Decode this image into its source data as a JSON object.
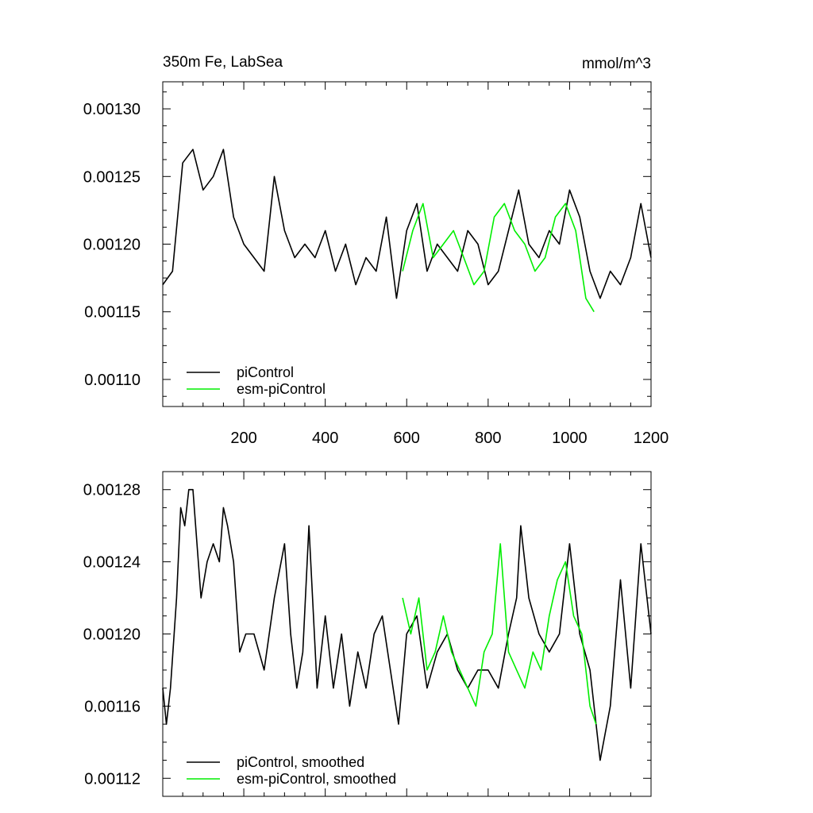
{
  "chart_data": [
    {
      "type": "line",
      "title_left": "350m Fe, LabSea",
      "title_right": "mmol/m^3",
      "xlabel": "",
      "ylabel": "",
      "xlim": [
        1,
        1200
      ],
      "ylim": [
        0.00108,
        0.00132
      ],
      "xticks": [
        200,
        400,
        600,
        800,
        1000,
        1200
      ],
      "xtick_labels": [
        "200",
        "400",
        "600",
        "800",
        "1000",
        "1200"
      ],
      "yticks": [
        0.0011,
        0.00115,
        0.0012,
        0.00125,
        0.0013
      ],
      "ytick_labels": [
        "0.00110",
        "0.00115",
        "0.00120",
        "0.00125",
        "0.00130"
      ],
      "legend_position": "bottom-left",
      "grid": false,
      "series": [
        {
          "name": "piControl",
          "color": "#000000",
          "x": [
            1,
            25,
            50,
            75,
            100,
            125,
            150,
            175,
            200,
            225,
            250,
            275,
            300,
            325,
            350,
            375,
            400,
            425,
            450,
            475,
            500,
            525,
            550,
            575,
            600,
            625,
            650,
            675,
            700,
            725,
            750,
            775,
            800,
            825,
            850,
            875,
            900,
            925,
            950,
            975,
            1000,
            1025,
            1050,
            1075,
            1100,
            1125,
            1150,
            1175,
            1200
          ],
          "values": [
            0.00117,
            0.00118,
            0.00126,
            0.00127,
            0.00124,
            0.00125,
            0.00127,
            0.00122,
            0.0012,
            0.00119,
            0.00118,
            0.00125,
            0.00121,
            0.00119,
            0.0012,
            0.00119,
            0.00121,
            0.00118,
            0.0012,
            0.00117,
            0.00119,
            0.00118,
            0.00122,
            0.00116,
            0.00121,
            0.00123,
            0.00118,
            0.0012,
            0.00119,
            0.00118,
            0.00121,
            0.0012,
            0.00117,
            0.00118,
            0.00121,
            0.00124,
            0.0012,
            0.00119,
            0.00121,
            0.0012,
            0.00124,
            0.00122,
            0.00118,
            0.00116,
            0.00118,
            0.00117,
            0.00119,
            0.00123,
            0.00119
          ]
        },
        {
          "name": "esm-piControl",
          "color": "#00ee00",
          "x": [
            590,
            615,
            640,
            665,
            690,
            715,
            740,
            765,
            790,
            815,
            840,
            865,
            890,
            915,
            940,
            965,
            990,
            1015,
            1040,
            1060
          ],
          "values": [
            0.00118,
            0.00121,
            0.00123,
            0.00119,
            0.0012,
            0.00121,
            0.00119,
            0.00117,
            0.00118,
            0.00122,
            0.00123,
            0.00121,
            0.0012,
            0.00118,
            0.00119,
            0.00122,
            0.00123,
            0.00121,
            0.00116,
            0.00115
          ]
        }
      ]
    },
    {
      "type": "line",
      "xlabel": "",
      "ylabel": "",
      "xlim": [
        1,
        1200
      ],
      "ylim": [
        0.00111,
        0.00129
      ],
      "xticks": [
        200,
        400,
        600,
        800,
        1000,
        1200
      ],
      "yticks": [
        0.00112,
        0.00116,
        0.0012,
        0.00124,
        0.00128
      ],
      "ytick_labels": [
        "0.00112",
        "0.00116",
        "0.00120",
        "0.00124",
        "0.00128"
      ],
      "legend_position": "bottom-left",
      "grid": false,
      "series": [
        {
          "name": "piControl, smoothed",
          "color": "#000000",
          "x": [
            1,
            10,
            20,
            35,
            45,
            55,
            65,
            75,
            85,
            95,
            110,
            125,
            140,
            150,
            160,
            175,
            190,
            205,
            225,
            250,
            275,
            300,
            315,
            330,
            345,
            360,
            380,
            400,
            420,
            440,
            460,
            480,
            500,
            520,
            540,
            560,
            580,
            600,
            625,
            650,
            675,
            700,
            725,
            750,
            775,
            800,
            825,
            850,
            870,
            880,
            900,
            925,
            950,
            975,
            1000,
            1025,
            1050,
            1075,
            1100,
            1125,
            1150,
            1175,
            1200
          ],
          "values": [
            0.00117,
            0.00115,
            0.00117,
            0.00122,
            0.00127,
            0.00126,
            0.00128,
            0.00128,
            0.00125,
            0.00122,
            0.00124,
            0.00125,
            0.00124,
            0.00127,
            0.00126,
            0.00124,
            0.00119,
            0.0012,
            0.0012,
            0.00118,
            0.00122,
            0.00125,
            0.0012,
            0.00117,
            0.00119,
            0.00126,
            0.00117,
            0.00121,
            0.00117,
            0.0012,
            0.00116,
            0.00119,
            0.00117,
            0.0012,
            0.00121,
            0.00118,
            0.00115,
            0.0012,
            0.00121,
            0.00117,
            0.00119,
            0.0012,
            0.00118,
            0.00117,
            0.00118,
            0.00118,
            0.00117,
            0.0012,
            0.00122,
            0.00126,
            0.00122,
            0.0012,
            0.00119,
            0.0012,
            0.00125,
            0.0012,
            0.00118,
            0.00113,
            0.00116,
            0.00123,
            0.00117,
            0.00125,
            0.0012
          ]
        },
        {
          "name": "esm-piControl, smoothed",
          "color": "#00ee00",
          "x": [
            590,
            610,
            630,
            650,
            670,
            690,
            710,
            730,
            750,
            770,
            790,
            810,
            830,
            850,
            870,
            890,
            910,
            930,
            950,
            970,
            990,
            1010,
            1030,
            1050,
            1065
          ],
          "values": [
            0.00122,
            0.0012,
            0.00122,
            0.00118,
            0.00119,
            0.00121,
            0.00119,
            0.00118,
            0.00117,
            0.00116,
            0.00119,
            0.0012,
            0.00125,
            0.00119,
            0.00118,
            0.00117,
            0.00119,
            0.00118,
            0.00121,
            0.00123,
            0.00124,
            0.00121,
            0.0012,
            0.00116,
            0.00115
          ]
        }
      ]
    }
  ]
}
